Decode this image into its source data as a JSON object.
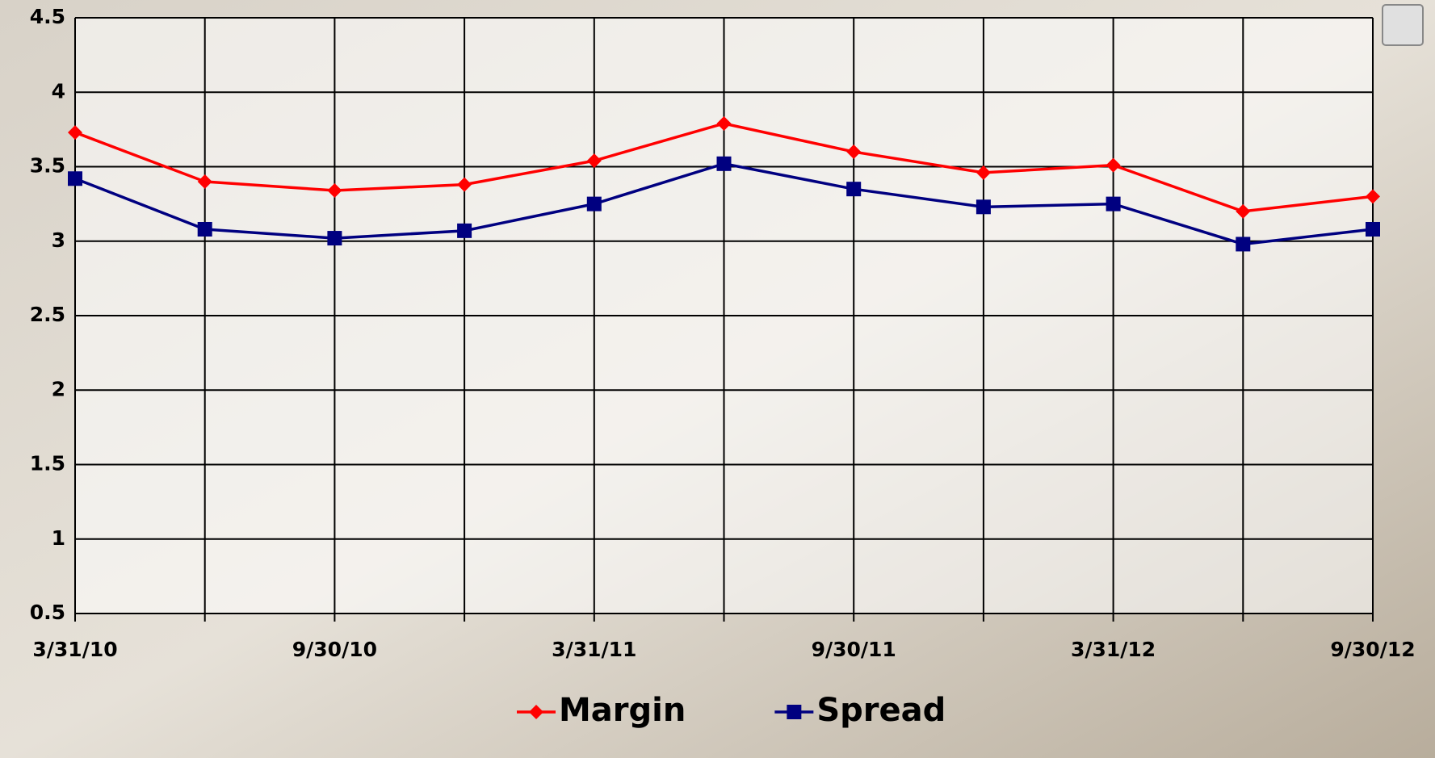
{
  "chart_data": {
    "type": "line",
    "categories": [
      "3/31/10",
      null,
      "9/30/10",
      null,
      "3/31/11",
      null,
      "9/30/11",
      null,
      "3/31/12",
      null,
      "9/30/12"
    ],
    "series": [
      {
        "name": "Margin",
        "color": "#ff0000",
        "marker": "diamond",
        "values": [
          3.73,
          3.4,
          3.34,
          3.38,
          3.54,
          3.79,
          3.6,
          3.46,
          3.51,
          3.2,
          3.3
        ]
      },
      {
        "name": "Spread",
        "color": "#000080",
        "marker": "square",
        "values": [
          3.42,
          3.08,
          3.02,
          3.07,
          3.25,
          3.52,
          3.35,
          3.23,
          3.25,
          2.98,
          3.08
        ]
      }
    ],
    "ylim": [
      0.5,
      4.5
    ],
    "yticks": [
      0.5,
      1,
      1.5,
      2,
      2.5,
      3,
      3.5,
      4,
      4.5
    ],
    "grid": true,
    "legend": "bottom"
  }
}
